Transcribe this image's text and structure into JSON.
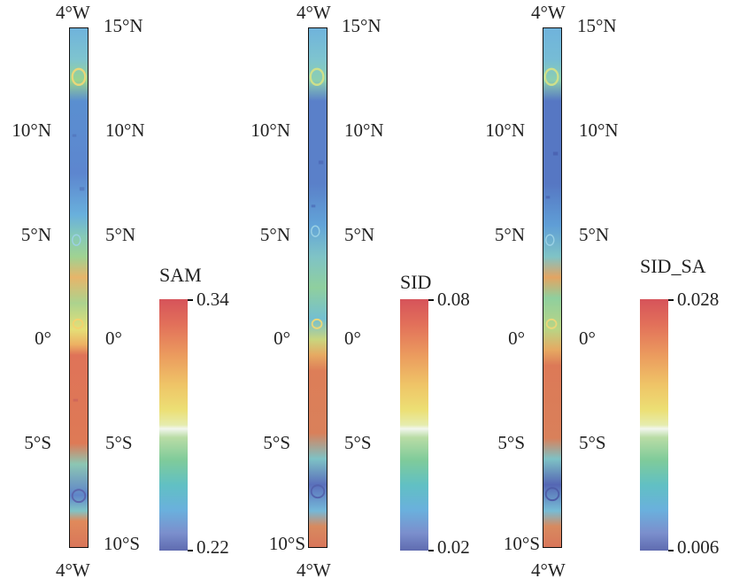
{
  "panels": [
    {
      "name": "sam",
      "top_lon_label": "4°W",
      "bottom_lon_label": "4°W",
      "right_lat_labels": [
        "15°N",
        "10°N",
        "5°N",
        "0°",
        "5°S",
        "10°S"
      ],
      "left_lat_labels": [
        "",
        "10°N",
        "5°N",
        "0°",
        "5°S",
        ""
      ],
      "colorbar": {
        "title": "SAM",
        "max_label": "0.34",
        "min_label": "0.22",
        "min": 0.22,
        "max": 0.34
      }
    },
    {
      "name": "sid",
      "top_lon_label": "4°W",
      "bottom_lon_label": "4°W",
      "right_lat_labels": [
        "15°N",
        "10°N",
        "5°N",
        "0°",
        "5°S",
        ""
      ],
      "left_lat_labels": [
        "",
        "10°N",
        "5°N",
        "0°",
        "5°S",
        "10°S"
      ],
      "colorbar": {
        "title": "SID",
        "max_label": "0.08",
        "min_label": "0.02",
        "min": 0.02,
        "max": 0.08
      }
    },
    {
      "name": "sid-sa",
      "top_lon_label": "4°W",
      "bottom_lon_label": "4°W",
      "right_lat_labels": [
        "15°N",
        "10°N",
        "5°N",
        "0°",
        "5°S",
        ""
      ],
      "left_lat_labels": [
        "",
        "10°N",
        "5°N",
        "0°",
        "5°S",
        "10°S"
      ],
      "colorbar": {
        "title": "SID_SA",
        "max_label": "0.028",
        "min_label": "0.006",
        "min": 0.006,
        "max": 0.028
      }
    }
  ],
  "colors": {
    "red": "#d6535a",
    "orange": "#eb9a5e",
    "yellow": "#ecdf74",
    "green": "#7fcb9a",
    "cyan": "#61c0c4",
    "blue": "#5f6bb0"
  }
}
